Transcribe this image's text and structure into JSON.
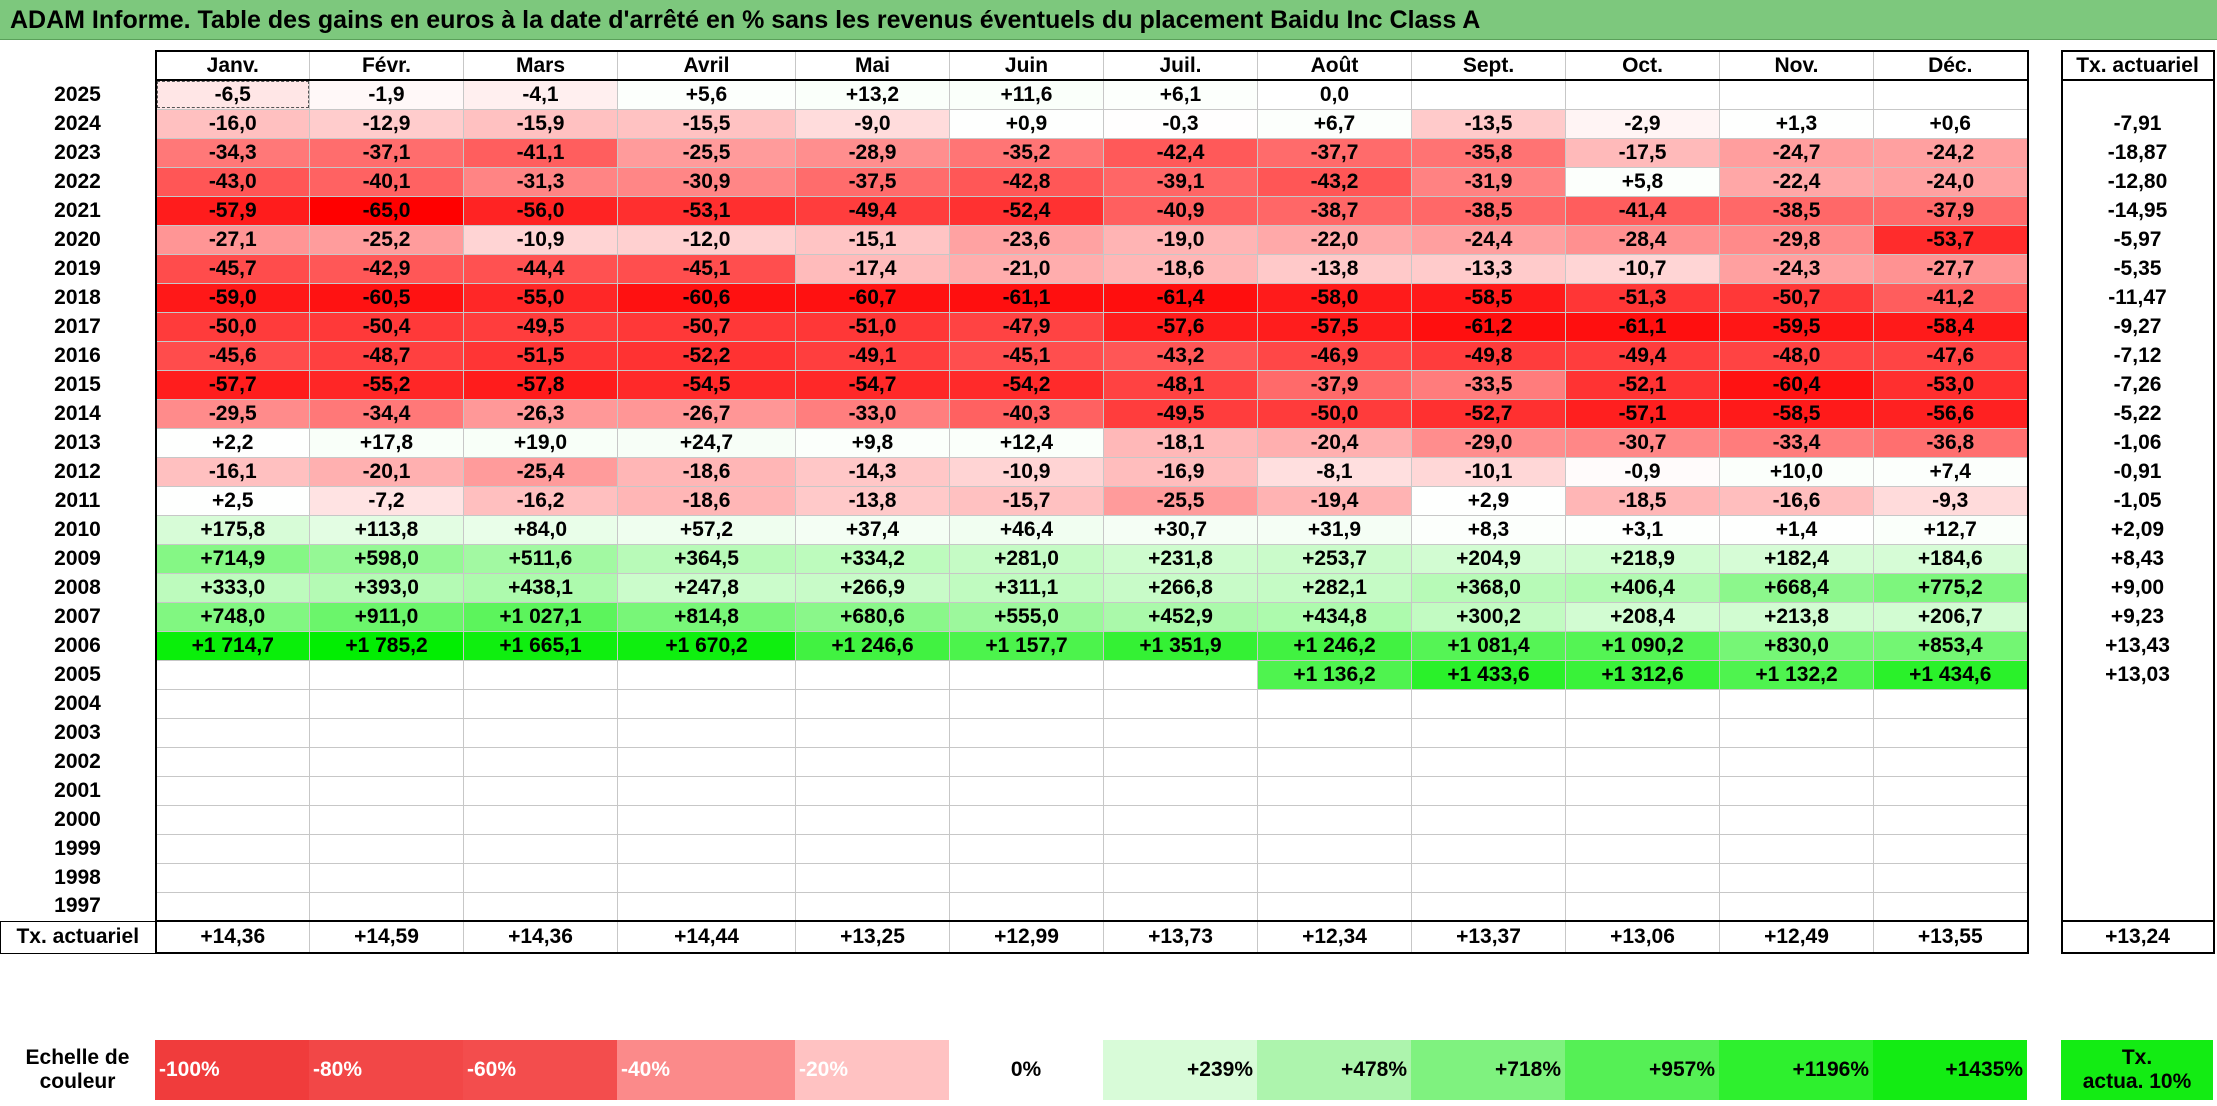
{
  "title": "ADAM Informe. Table des gains en euros à la date d'arrêté en % sans les revenus éventuels du placement Baidu Inc Class A",
  "headers": {
    "months": [
      "Janv.",
      "Févr.",
      "Mars",
      "Avril",
      "Mai",
      "Juin",
      "Juil.",
      "Août",
      "Sept.",
      "Oct.",
      "Nov.",
      "Déc."
    ],
    "rate": "Tx. actuariel"
  },
  "rows": [
    {
      "year": "2025",
      "values": [
        "-6,5",
        "-1,9",
        "-4,1",
        "+5,6",
        "+13,2",
        "+11,6",
        "+6,1",
        "0,0",
        "",
        "",
        "",
        ""
      ],
      "rate": ""
    },
    {
      "year": "2024",
      "values": [
        "-16,0",
        "-12,9",
        "-15,9",
        "-15,5",
        "-9,0",
        "+0,9",
        "-0,3",
        "+6,7",
        "-13,5",
        "-2,9",
        "+1,3",
        "+0,6"
      ],
      "rate": "-7,91"
    },
    {
      "year": "2023",
      "values": [
        "-34,3",
        "-37,1",
        "-41,1",
        "-25,5",
        "-28,9",
        "-35,2",
        "-42,4",
        "-37,7",
        "-35,8",
        "-17,5",
        "-24,7",
        "-24,2"
      ],
      "rate": "-18,87"
    },
    {
      "year": "2022",
      "values": [
        "-43,0",
        "-40,1",
        "-31,3",
        "-30,9",
        "-37,5",
        "-42,8",
        "-39,1",
        "-43,2",
        "-31,9",
        "+5,8",
        "-22,4",
        "-24,0"
      ],
      "rate": "-12,80"
    },
    {
      "year": "2021",
      "values": [
        "-57,9",
        "-65,0",
        "-56,0",
        "-53,1",
        "-49,4",
        "-52,4",
        "-40,9",
        "-38,7",
        "-38,5",
        "-41,4",
        "-38,5",
        "-37,9"
      ],
      "rate": "-14,95"
    },
    {
      "year": "2020",
      "values": [
        "-27,1",
        "-25,2",
        "-10,9",
        "-12,0",
        "-15,1",
        "-23,6",
        "-19,0",
        "-22,0",
        "-24,4",
        "-28,4",
        "-29,8",
        "-53,7"
      ],
      "rate": "-5,97"
    },
    {
      "year": "2019",
      "values": [
        "-45,7",
        "-42,9",
        "-44,4",
        "-45,1",
        "-17,4",
        "-21,0",
        "-18,6",
        "-13,8",
        "-13,3",
        "-10,7",
        "-24,3",
        "-27,7"
      ],
      "rate": "-5,35"
    },
    {
      "year": "2018",
      "values": [
        "-59,0",
        "-60,5",
        "-55,0",
        "-60,6",
        "-60,7",
        "-61,1",
        "-61,4",
        "-58,0",
        "-58,5",
        "-51,3",
        "-50,7",
        "-41,2"
      ],
      "rate": "-11,47"
    },
    {
      "year": "2017",
      "values": [
        "-50,0",
        "-50,4",
        "-49,5",
        "-50,7",
        "-51,0",
        "-47,9",
        "-57,6",
        "-57,5",
        "-61,2",
        "-61,1",
        "-59,5",
        "-58,4"
      ],
      "rate": "-9,27"
    },
    {
      "year": "2016",
      "values": [
        "-45,6",
        "-48,7",
        "-51,5",
        "-52,2",
        "-49,1",
        "-45,1",
        "-43,2",
        "-46,9",
        "-49,8",
        "-49,4",
        "-48,0",
        "-47,6"
      ],
      "rate": "-7,12"
    },
    {
      "year": "2015",
      "values": [
        "-57,7",
        "-55,2",
        "-57,8",
        "-54,5",
        "-54,7",
        "-54,2",
        "-48,1",
        "-37,9",
        "-33,5",
        "-52,1",
        "-60,4",
        "-53,0"
      ],
      "rate": "-7,26"
    },
    {
      "year": "2014",
      "values": [
        "-29,5",
        "-34,4",
        "-26,3",
        "-26,7",
        "-33,0",
        "-40,3",
        "-49,5",
        "-50,0",
        "-52,7",
        "-57,1",
        "-58,5",
        "-56,6"
      ],
      "rate": "-5,22"
    },
    {
      "year": "2013",
      "values": [
        "+2,2",
        "+17,8",
        "+19,0",
        "+24,7",
        "+9,8",
        "+12,4",
        "-18,1",
        "-20,4",
        "-29,0",
        "-30,7",
        "-33,4",
        "-36,8"
      ],
      "rate": "-1,06"
    },
    {
      "year": "2012",
      "values": [
        "-16,1",
        "-20,1",
        "-25,4",
        "-18,6",
        "-14,3",
        "-10,9",
        "-16,9",
        "-8,1",
        "-10,1",
        "-0,9",
        "+10,0",
        "+7,4"
      ],
      "rate": "-0,91"
    },
    {
      "year": "2011",
      "values": [
        "+2,5",
        "-7,2",
        "-16,2",
        "-18,6",
        "-13,8",
        "-15,7",
        "-25,5",
        "-19,4",
        "+2,9",
        "-18,5",
        "-16,6",
        "-9,3"
      ],
      "rate": "-1,05"
    },
    {
      "year": "2010",
      "values": [
        "+175,8",
        "+113,8",
        "+84,0",
        "+57,2",
        "+37,4",
        "+46,4",
        "+30,7",
        "+31,9",
        "+8,3",
        "+3,1",
        "+1,4",
        "+12,7"
      ],
      "rate": "+2,09"
    },
    {
      "year": "2009",
      "values": [
        "+714,9",
        "+598,0",
        "+511,6",
        "+364,5",
        "+334,2",
        "+281,0",
        "+231,8",
        "+253,7",
        "+204,9",
        "+218,9",
        "+182,4",
        "+184,6"
      ],
      "rate": "+8,43"
    },
    {
      "year": "2008",
      "values": [
        "+333,0",
        "+393,0",
        "+438,1",
        "+247,8",
        "+266,9",
        "+311,1",
        "+266,8",
        "+282,1",
        "+368,0",
        "+406,4",
        "+668,4",
        "+775,2"
      ],
      "rate": "+9,00"
    },
    {
      "year": "2007",
      "values": [
        "+748,0",
        "+911,0",
        "+1 027,1",
        "+814,8",
        "+680,6",
        "+555,0",
        "+452,9",
        "+434,8",
        "+300,2",
        "+208,4",
        "+213,8",
        "+206,7"
      ],
      "rate": "+9,23"
    },
    {
      "year": "2006",
      "values": [
        "+1 714,7",
        "+1 785,2",
        "+1 665,1",
        "+1 670,2",
        "+1 246,6",
        "+1 157,7",
        "+1 351,9",
        "+1 246,2",
        "+1 081,4",
        "+1 090,2",
        "+830,0",
        "+853,4"
      ],
      "rate": "+13,43"
    },
    {
      "year": "2005",
      "values": [
        "",
        "",
        "",
        "",
        "",
        "",
        "",
        "+1 136,2",
        "+1 433,6",
        "+1 312,6",
        "+1 132,2",
        "+1 434,6"
      ],
      "rate": "+13,03"
    },
    {
      "year": "2004",
      "values": [
        "",
        "",
        "",
        "",
        "",
        "",
        "",
        "",
        "",
        "",
        "",
        ""
      ],
      "rate": ""
    },
    {
      "year": "2003",
      "values": [
        "",
        "",
        "",
        "",
        "",
        "",
        "",
        "",
        "",
        "",
        "",
        ""
      ],
      "rate": ""
    },
    {
      "year": "2002",
      "values": [
        "",
        "",
        "",
        "",
        "",
        "",
        "",
        "",
        "",
        "",
        "",
        ""
      ],
      "rate": ""
    },
    {
      "year": "2001",
      "values": [
        "",
        "",
        "",
        "",
        "",
        "",
        "",
        "",
        "",
        "",
        "",
        ""
      ],
      "rate": ""
    },
    {
      "year": "2000",
      "values": [
        "",
        "",
        "",
        "",
        "",
        "",
        "",
        "",
        "",
        "",
        "",
        ""
      ],
      "rate": ""
    },
    {
      "year": "1999",
      "values": [
        "",
        "",
        "",
        "",
        "",
        "",
        "",
        "",
        "",
        "",
        "",
        ""
      ],
      "rate": ""
    },
    {
      "year": "1998",
      "values": [
        "",
        "",
        "",
        "",
        "",
        "",
        "",
        "",
        "",
        "",
        "",
        ""
      ],
      "rate": ""
    },
    {
      "year": "1997",
      "values": [
        "",
        "",
        "",
        "",
        "",
        "",
        "",
        "",
        "",
        "",
        "",
        ""
      ],
      "rate": ""
    }
  ],
  "footer": {
    "label": "Tx. actuariel",
    "values": [
      "+14,36",
      "+14,59",
      "+14,36",
      "+14,44",
      "+13,25",
      "+12,99",
      "+13,73",
      "+12,34",
      "+13,37",
      "+13,06",
      "+12,49",
      "+13,55"
    ],
    "rate": "+13,24"
  },
  "scale": {
    "label_line1": "Echelle de",
    "label_line2": "couleur",
    "items": [
      {
        "text": "-100%",
        "color": "#f03c3c"
      },
      {
        "text": "-80%",
        "color": "#f24747"
      },
      {
        "text": "-60%",
        "color": "#f34d4d"
      },
      {
        "text": "-40%",
        "color": "#fb8a8a"
      },
      {
        "text": "-20%",
        "color": "#ffc2c2"
      },
      {
        "text": "0%",
        "color": "#ffffff"
      },
      {
        "text": "+239%",
        "color": "#d8fbd8"
      },
      {
        "text": "+478%",
        "color": "#adf4ad"
      },
      {
        "text": "+718%",
        "color": "#7ff27f"
      },
      {
        "text": "+957%",
        "color": "#55f055"
      },
      {
        "text": "+1196%",
        "color": "#2ef02e"
      },
      {
        "text": "+1435%",
        "color": "#13ec13"
      }
    ],
    "act_line1": "Tx.",
    "act_line2": "actua. 10%",
    "act_color": "#13ec13"
  },
  "colors": {
    "title_bg": "#7dc87d",
    "negative_max": "#ff0000",
    "positive_max": "#00ee00"
  }
}
